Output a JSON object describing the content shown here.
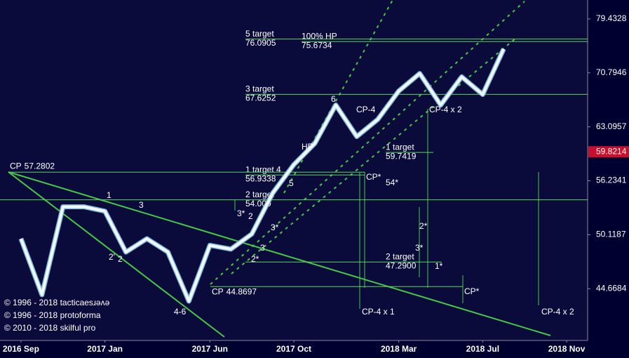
{
  "chart_data": {
    "type": "line",
    "x": [
      "2016-09",
      "2016-10",
      "2016-11",
      "2016-12",
      "2017-01",
      "2017-02",
      "2017-03",
      "2017-04",
      "2017-05",
      "2017-06",
      "2017-07",
      "2017-08",
      "2017-09",
      "2017-10",
      "2017-11",
      "2017-12",
      "2018-01",
      "2018-02",
      "2018-03",
      "2018-04",
      "2018-05",
      "2018-06",
      "2018-07",
      "2018-08"
    ],
    "values": [
      49.7,
      44.1,
      53.2,
      53.2,
      52.7,
      48.3,
      49.7,
      48.3,
      43.5,
      49.0,
      48.6,
      50.2,
      54.8,
      58.2,
      60.9,
      66.1,
      61.8,
      64.1,
      68.1,
      70.7,
      66.1,
      70.2,
      67.6,
      74.5
    ],
    "color": "#f2faff",
    "xlim": [
      "2016-08",
      "2018-12"
    ],
    "xticks": [
      {
        "value": "2016-09",
        "label": "2016 Sep"
      },
      {
        "value": "2017-01",
        "label": "2017 Jan"
      },
      {
        "value": "2017-06",
        "label": "2017 Jun"
      },
      {
        "value": "2017-10",
        "label": "2017 Oct"
      },
      {
        "value": "2018-03",
        "label": "2018 Mar"
      },
      {
        "value": "2018-07",
        "label": "2018 Jul"
      },
      {
        "value": "2018-11",
        "label": "2018 Nov"
      }
    ],
    "ylim": [
      40,
      82.7
    ],
    "log_scale": true,
    "yticks": [
      79.4328,
      70.7946,
      63.0957,
      56.2341,
      50.1187,
      44.6684
    ],
    "last_price": 59.8214,
    "levels": [
      {
        "name": "5 target",
        "value": 76.0905
      },
      {
        "name": "100% HP",
        "value": 75.6734
      },
      {
        "name": "3 target",
        "value": 67.6252
      },
      {
        "name": "1 target",
        "value": 59.7419
      },
      {
        "name": "1 target 4",
        "value": 56.9338
      },
      {
        "name": "2 target",
        "value": 54,
        "value_label": "54.000"
      },
      {
        "name": "2 target",
        "value": 47.29,
        "value_label": "47.2900"
      },
      {
        "name": "CP",
        "value": 57.2802
      },
      {
        "name": "CP",
        "value": 44.8697
      }
    ],
    "annotations": [
      "HP",
      "6",
      "CP-4",
      "CP-4 x 2",
      "CP*",
      "54*",
      "1",
      "3",
      "2",
      "3*",
      "3*",
      "3",
      "2*",
      "3*",
      "1*",
      "2'",
      "2",
      "2*",
      "4-6",
      "5",
      "CP-4 x 1",
      "CP*",
      "CP-4 x 2"
    ],
    "credits": [
      "© 1996 - 2018 tacticaesɹǝʌǝ",
      "© 1996 - 2018 protoforma",
      "© 2010 - 2018 skilful pro"
    ]
  }
}
